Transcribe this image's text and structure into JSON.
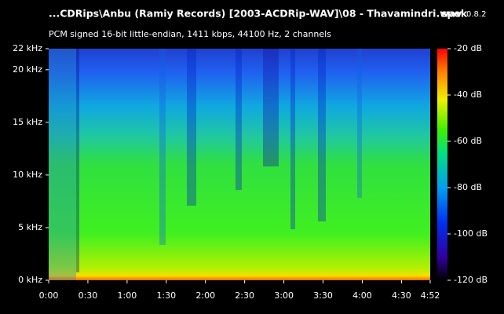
{
  "chart_data": {
    "type": "spectrogram",
    "title": "...CDRips\\Anbu (Ramiy Records) [2003-ACDRip-WAV]\\08 - Thavamindri.wav",
    "subtitle": "PCM signed 16-bit little-endian, 1411 kbps, 44100 Hz, 2 channels",
    "app_name": "spek",
    "app_version": "0.8.2",
    "xlim": [
      0,
      292
    ],
    "xticks": [
      {
        "value": 0,
        "label": "0:00"
      },
      {
        "value": 30,
        "label": "0:30"
      },
      {
        "value": 60,
        "label": "1:00"
      },
      {
        "value": 90,
        "label": "1:30"
      },
      {
        "value": 120,
        "label": "2:00"
      },
      {
        "value": 150,
        "label": "2:30"
      },
      {
        "value": 180,
        "label": "3:00"
      },
      {
        "value": 210,
        "label": "3:30"
      },
      {
        "value": 240,
        "label": "4:00"
      },
      {
        "value": 270,
        "label": "4:30"
      },
      {
        "value": 292,
        "label": "4:52"
      }
    ],
    "ylim": [
      0,
      22
    ],
    "yticks": [
      {
        "value": 0,
        "label": "0 kHz"
      },
      {
        "value": 5,
        "label": "5 kHz"
      },
      {
        "value": 10,
        "label": "10 kHz"
      },
      {
        "value": 15,
        "label": "15 kHz"
      },
      {
        "value": 20,
        "label": "20 kHz"
      },
      {
        "value": 22,
        "label": "22 kHz"
      }
    ],
    "zlim": [
      -120,
      -20
    ],
    "zticks": [
      {
        "value": -20,
        "label": "-20 dB"
      },
      {
        "value": -40,
        "label": "-40 dB"
      },
      {
        "value": -60,
        "label": "-60 dB"
      },
      {
        "value": -80,
        "label": "-80 dB"
      },
      {
        "value": -100,
        "label": "-100 dB"
      },
      {
        "value": -120,
        "label": "-120 dB"
      }
    ]
  }
}
